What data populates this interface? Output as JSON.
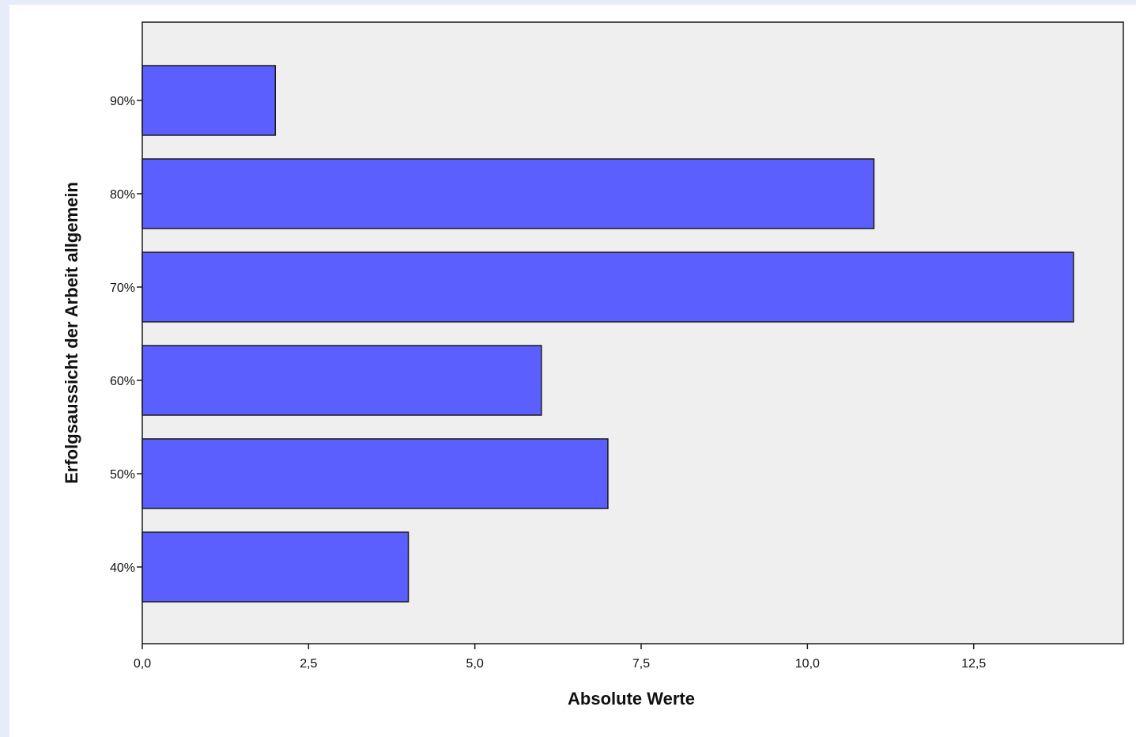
{
  "chart_data": {
    "type": "bar",
    "orientation": "horizontal",
    "categories": [
      "90%",
      "80%",
      "70%",
      "60%",
      "50%",
      "40%"
    ],
    "values": [
      2,
      11,
      14,
      6,
      7,
      4
    ],
    "title": "",
    "xlabel": "Absolute Werte",
    "ylabel": "Erfolgsaussicht der Arbeit allgemein",
    "xlim": [
      0,
      14.75
    ],
    "xticks": [
      {
        "value": 0,
        "label": "0,0"
      },
      {
        "value": 2.5,
        "label": "2,5"
      },
      {
        "value": 5,
        "label": "5,0"
      },
      {
        "value": 7.5,
        "label": "7,5"
      },
      {
        "value": 10,
        "label": "10,0"
      },
      {
        "value": 12.5,
        "label": "12,5"
      }
    ],
    "grid": false,
    "legend": "none",
    "colors": {
      "bar_fill": "#5b5ffe",
      "bar_stroke": "#1a1a1a",
      "plot_background": "#efefef",
      "page_background": "#e6ecfa"
    }
  }
}
